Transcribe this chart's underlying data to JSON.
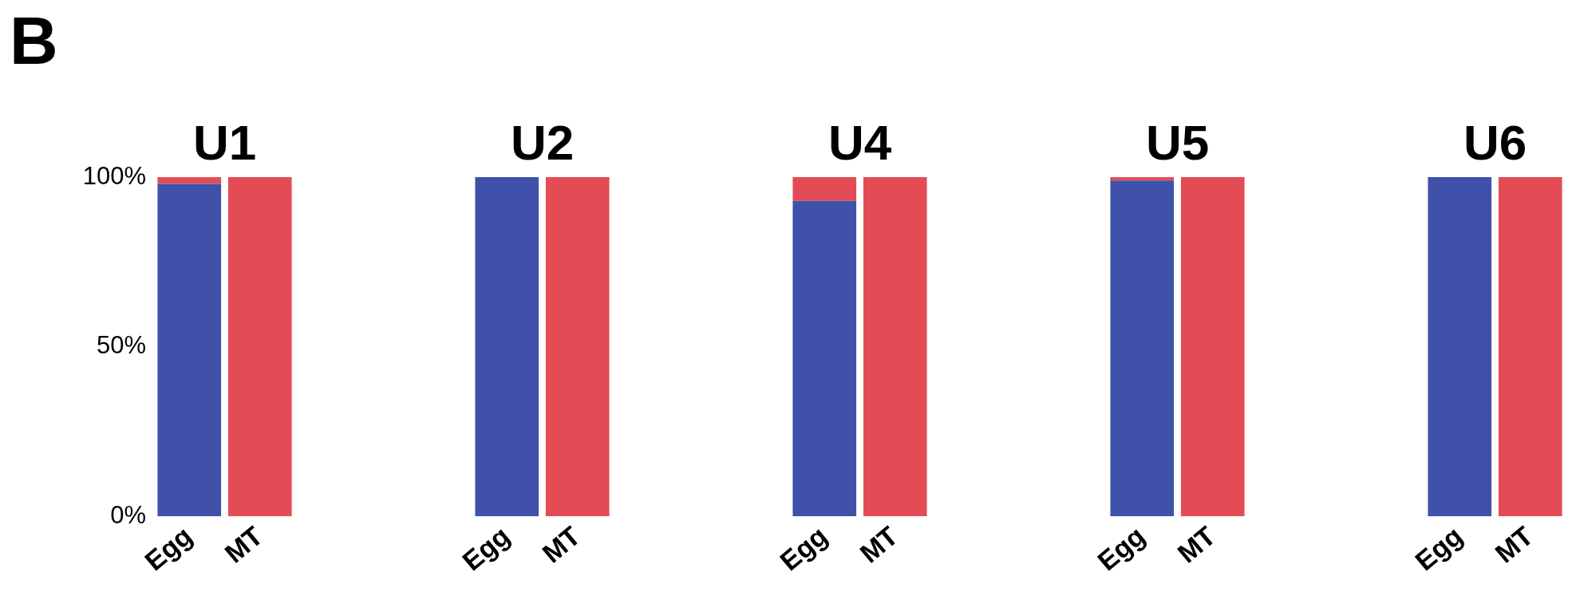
{
  "chart_data": [
    {
      "type": "bar",
      "title": "U1",
      "annotations": [
        "B"
      ],
      "categories": [
        "Egg",
        "MT"
      ],
      "stacked": true,
      "grid": false,
      "legend": false,
      "ylim": [
        0,
        100
      ],
      "yticks": [
        {
          "value": 0,
          "label": "0%"
        },
        {
          "value": 50,
          "label": "50%"
        },
        {
          "value": 100,
          "label": "100%"
        }
      ],
      "series": [
        {
          "color": "#3f51a8",
          "values": [
            98,
            0
          ]
        },
        {
          "color": "#e34c55",
          "values": [
            2,
            100
          ]
        }
      ]
    },
    {
      "type": "bar",
      "title": "U2",
      "categories": [
        "Egg",
        "MT"
      ],
      "stacked": true,
      "grid": false,
      "legend": false,
      "tick_labels": "x",
      "ylim": [
        0,
        100
      ],
      "series": [
        {
          "color": "#3f51a8",
          "values": [
            100,
            0
          ]
        },
        {
          "color": "#e34c55",
          "values": [
            0,
            100
          ]
        }
      ]
    },
    {
      "type": "bar",
      "title": "U4",
      "categories": [
        "Egg",
        "MT"
      ],
      "stacked": true,
      "grid": false,
      "legend": false,
      "tick_labels": "x",
      "ylim": [
        0,
        100
      ],
      "series": [
        {
          "color": "#3f51a8",
          "values": [
            93,
            0
          ]
        },
        {
          "color": "#e34c55",
          "values": [
            7,
            100
          ]
        }
      ]
    },
    {
      "type": "bar",
      "title": "U5",
      "categories": [
        "Egg",
        "MT"
      ],
      "stacked": true,
      "grid": false,
      "legend": false,
      "tick_labels": "x",
      "ylim": [
        0,
        100
      ],
      "series": [
        {
          "color": "#3f51a8",
          "values": [
            99,
            0
          ]
        },
        {
          "color": "#e34c55",
          "values": [
            1,
            100
          ]
        }
      ]
    },
    {
      "type": "bar",
      "title": "U6",
      "categories": [
        "Egg",
        "MT"
      ],
      "stacked": true,
      "grid": false,
      "legend": false,
      "tick_labels": "x",
      "ylim": [
        0,
        100
      ],
      "series": [
        {
          "color": "#3f51a8",
          "values": [
            100,
            0
          ]
        },
        {
          "color": "#e34c55",
          "values": [
            0,
            100
          ]
        }
      ]
    }
  ]
}
